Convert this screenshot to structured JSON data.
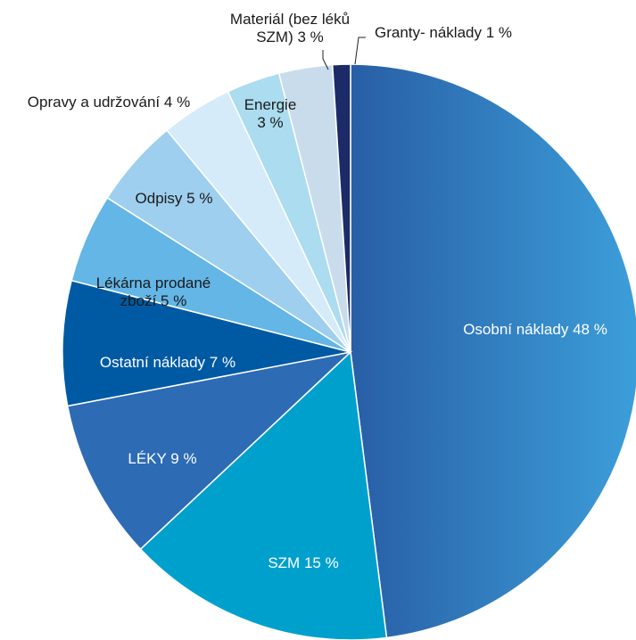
{
  "chart_data": {
    "type": "pie",
    "categories": [
      "Osobní náklady",
      "SZM",
      "LÉKY",
      "Ostatní náklady",
      "Lékárna prodané zboží",
      "Odpisy",
      "Opravy a udržování",
      "Energie",
      "Materiál (bez léků SZM)",
      "Granty- náklady"
    ],
    "values": [
      48,
      15,
      9,
      7,
      5,
      5,
      4,
      3,
      3,
      1
    ],
    "value_labels": [
      "48 %",
      "15 %",
      "9 %",
      "7 %",
      "5 %",
      "5 %",
      "4 %",
      "3 %",
      "3 %",
      "1 %"
    ],
    "colors": [
      "#2f72b8",
      "#00a0cd",
      "#2d6bb5",
      "#005aa3",
      "#63b6e6",
      "#9ecfee",
      "#d6ebf9",
      "#abdcef",
      "#c8dcec",
      "#1c2b68"
    ]
  }
}
